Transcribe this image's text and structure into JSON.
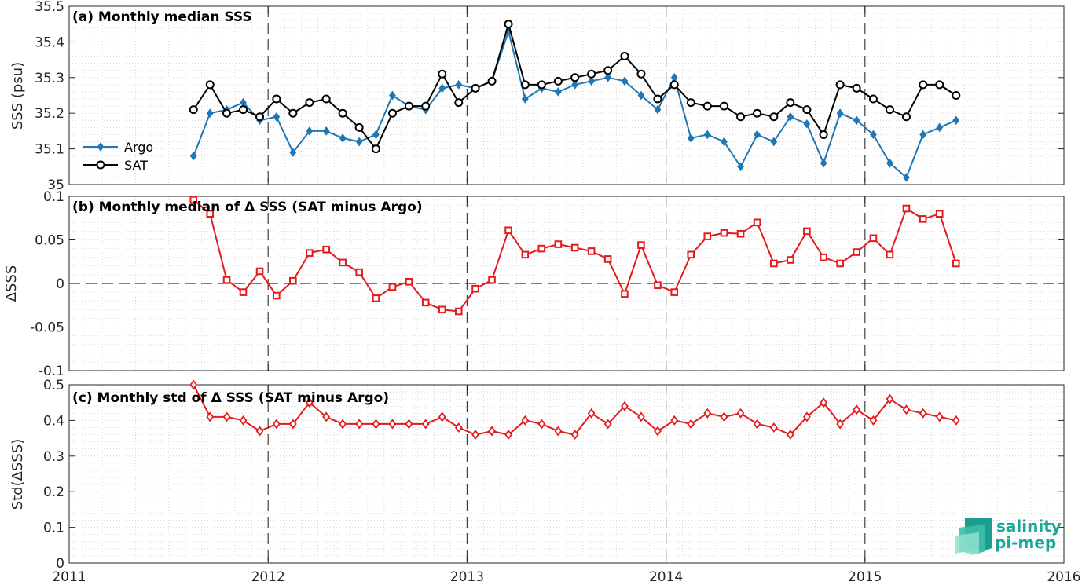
{
  "chart_data": [
    {
      "type": "line",
      "title": "(a) Monthly median SSS",
      "ylabel": "SSS (psu)",
      "ylim": [
        35.0,
        35.5
      ],
      "yticks": [
        35,
        35.1,
        35.2,
        35.3,
        35.4,
        35.5
      ],
      "ytick_labels": [
        "35",
        "35.1",
        "35.2",
        "35.3",
        "35.4",
        "35.5"
      ],
      "xlim": [
        2011,
        2016
      ],
      "grid": true,
      "legend_placement": "left",
      "x": [
        2011.625,
        2011.708,
        2011.792,
        2011.875,
        2011.958,
        2012.042,
        2012.125,
        2012.208,
        2012.292,
        2012.375,
        2012.458,
        2012.542,
        2012.625,
        2012.708,
        2012.792,
        2012.875,
        2012.958,
        2013.042,
        2013.125,
        2013.208,
        2013.292,
        2013.375,
        2013.458,
        2013.542,
        2013.625,
        2013.708,
        2013.792,
        2013.875,
        2013.958,
        2014.042,
        2014.125,
        2014.208,
        2014.292,
        2014.375,
        2014.458,
        2014.542,
        2014.625,
        2014.708,
        2014.792,
        2014.875,
        2014.958,
        2015.042,
        2015.125,
        2015.208,
        2015.292,
        2015.375,
        2015.458
      ],
      "series": [
        {
          "name": "Argo",
          "color": "#1f77b4",
          "marker": "diamond",
          "values": [
            35.08,
            35.2,
            35.21,
            35.23,
            35.18,
            35.19,
            35.09,
            35.15,
            35.15,
            35.13,
            35.12,
            35.14,
            35.25,
            35.22,
            35.21,
            35.27,
            35.28,
            35.27,
            35.29,
            35.43,
            35.24,
            35.27,
            35.26,
            35.28,
            35.29,
            35.3,
            35.29,
            35.25,
            35.21,
            35.3,
            35.13,
            35.14,
            35.12,
            35.05,
            35.14,
            35.12,
            35.19,
            35.17,
            35.06,
            35.2,
            35.18,
            35.14,
            35.06,
            35.02,
            35.14,
            35.16,
            35.18
          ]
        },
        {
          "name": "SAT",
          "color": "#000000",
          "marker": "circle",
          "values": [
            35.21,
            35.28,
            35.2,
            35.21,
            35.19,
            35.24,
            35.2,
            35.23,
            35.24,
            35.2,
            35.16,
            35.1,
            35.2,
            35.22,
            35.22,
            35.31,
            35.23,
            35.27,
            35.29,
            35.45,
            35.28,
            35.28,
            35.29,
            35.3,
            35.31,
            35.32,
            35.36,
            35.31,
            35.24,
            35.28,
            35.23,
            35.22,
            35.22,
            35.19,
            35.2,
            35.19,
            35.23,
            35.21,
            35.14,
            35.28,
            35.27,
            35.24,
            35.21,
            35.19,
            35.28,
            35.28,
            35.25
          ]
        }
      ]
    },
    {
      "type": "line",
      "title": "(b) Monthly median of Δ SSS (SAT minus Argo)",
      "ylabel": "ΔSSS",
      "ylim": [
        -0.1,
        0.1
      ],
      "yticks": [
        -0.1,
        -0.05,
        0,
        0.05,
        0.1
      ],
      "ytick_labels": [
        "-0.1",
        "-0.05",
        "0",
        "0.05",
        "0.1"
      ],
      "xlim": [
        2011,
        2016
      ],
      "grid": true,
      "x": [
        2011.625,
        2011.708,
        2011.792,
        2011.875,
        2011.958,
        2012.042,
        2012.125,
        2012.208,
        2012.292,
        2012.375,
        2012.458,
        2012.542,
        2012.625,
        2012.708,
        2012.792,
        2012.875,
        2012.958,
        2013.042,
        2013.125,
        2013.208,
        2013.292,
        2013.375,
        2013.458,
        2013.542,
        2013.625,
        2013.708,
        2013.792,
        2013.875,
        2013.958,
        2014.042,
        2014.125,
        2014.208,
        2014.292,
        2014.375,
        2014.458,
        2014.542,
        2014.625,
        2014.708,
        2014.792,
        2014.875,
        2014.958,
        2015.042,
        2015.125,
        2015.208,
        2015.292,
        2015.375,
        2015.458
      ],
      "series": [
        {
          "color": "#e41a1c",
          "marker": "square",
          "values": [
            0.096,
            0.08,
            0.004,
            -0.01,
            0.014,
            -0.014,
            0.003,
            0.035,
            0.039,
            0.024,
            0.013,
            -0.017,
            -0.004,
            0.002,
            -0.022,
            -0.03,
            -0.032,
            -0.006,
            0.004,
            0.061,
            0.033,
            0.04,
            0.045,
            0.041,
            0.037,
            0.028,
            -0.012,
            0.044,
            -0.002,
            -0.01,
            0.033,
            0.054,
            0.058,
            0.057,
            0.07,
            0.023,
            0.027,
            0.06,
            0.03,
            0.023,
            0.036,
            0.052,
            0.033,
            0.086,
            0.074,
            0.08,
            0.023
          ]
        }
      ]
    },
    {
      "type": "line",
      "title": "(c) Monthly std of Δ SSS (SAT minus Argo)",
      "ylabel": "Std(ΔSSS)",
      "ylim": [
        0,
        0.5
      ],
      "yticks": [
        0,
        0.1,
        0.2,
        0.3,
        0.4,
        0.5
      ],
      "ytick_labels": [
        "0",
        "0.1",
        "0.2",
        "0.3",
        "0.4",
        "0.5"
      ],
      "xlim": [
        2011,
        2016
      ],
      "xticks": [
        2011,
        2012,
        2013,
        2014,
        2015,
        2016
      ],
      "xtick_labels": [
        "2011",
        "2012",
        "2013",
        "2014",
        "2015",
        "2016"
      ],
      "grid": true,
      "x": [
        2011.625,
        2011.708,
        2011.792,
        2011.875,
        2011.958,
        2012.042,
        2012.125,
        2012.208,
        2012.292,
        2012.375,
        2012.458,
        2012.542,
        2012.625,
        2012.708,
        2012.792,
        2012.875,
        2012.958,
        2013.042,
        2013.125,
        2013.208,
        2013.292,
        2013.375,
        2013.458,
        2013.542,
        2013.625,
        2013.708,
        2013.792,
        2013.875,
        2013.958,
        2014.042,
        2014.125,
        2014.208,
        2014.292,
        2014.375,
        2014.458,
        2014.542,
        2014.625,
        2014.708,
        2014.792,
        2014.875,
        2014.958,
        2015.042,
        2015.125,
        2015.208,
        2015.292,
        2015.375,
        2015.458
      ],
      "series": [
        {
          "color": "#e41a1c",
          "marker": "diamond",
          "values": [
            0.5,
            0.41,
            0.41,
            0.4,
            0.37,
            0.39,
            0.39,
            0.45,
            0.41,
            0.39,
            0.39,
            0.39,
            0.39,
            0.39,
            0.39,
            0.41,
            0.38,
            0.36,
            0.37,
            0.36,
            0.4,
            0.39,
            0.37,
            0.36,
            0.42,
            0.39,
            0.44,
            0.41,
            0.37,
            0.4,
            0.39,
            0.42,
            0.41,
            0.42,
            0.39,
            0.38,
            0.36,
            0.41,
            0.45,
            0.39,
            0.43,
            0.4,
            0.46,
            0.43,
            0.42,
            0.41,
            0.4
          ]
        }
      ]
    }
  ],
  "logo": {
    "line1": "salinity",
    "line2": "pi-mep"
  },
  "colors": {
    "axis": "#262626",
    "grid": "#d9d9d9",
    "year_line": "#404040",
    "logo": "#1aa79a"
  }
}
